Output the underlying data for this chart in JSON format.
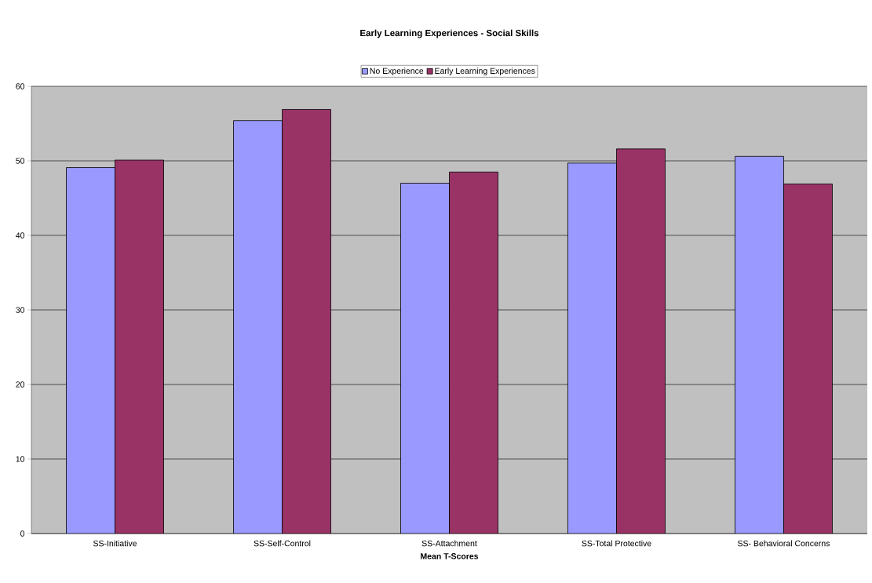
{
  "chart_data": {
    "type": "bar",
    "title": "Early Learning Experiences - Social Skills",
    "xlabel": "Mean T-Scores",
    "categories": [
      "SS-Initiative",
      "SS-Self-Control",
      "SS-Attachment",
      "SS-Total Protective",
      "SS- Behavioral Concerns"
    ],
    "series": [
      {
        "name": "No Experience",
        "color": "#9999ff",
        "values": [
          49.1,
          55.4,
          47.0,
          49.7,
          50.6
        ]
      },
      {
        "name": "Early Learning Experiences",
        "color": "#993366",
        "values": [
          50.1,
          56.9,
          48.5,
          51.6,
          46.9
        ]
      }
    ],
    "ylim": [
      0,
      60
    ],
    "yticks": [
      0,
      10,
      20,
      30,
      40,
      50,
      60
    ],
    "grid": "y",
    "legend": "top"
  }
}
